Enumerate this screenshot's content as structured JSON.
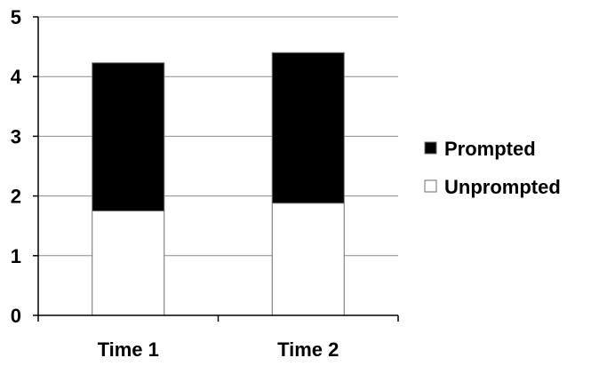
{
  "chart_data": {
    "type": "bar",
    "stacked": true,
    "categories": [
      "Time 1",
      "Time 2"
    ],
    "series": [
      {
        "name": "Unprompted",
        "values": [
          1.75,
          1.88
        ],
        "color": "#ffffff"
      },
      {
        "name": "Prompted",
        "values": [
          2.48,
          2.52
        ],
        "color": "#000000"
      }
    ],
    "ylim": [
      0,
      5
    ],
    "yticks": [
      "0",
      "1",
      "2",
      "3",
      "4",
      "5"
    ],
    "grid": true,
    "legend_position": "right",
    "legend_order": [
      "Prompted",
      "Unprompted"
    ],
    "title": "",
    "xlabel": "",
    "ylabel": ""
  }
}
